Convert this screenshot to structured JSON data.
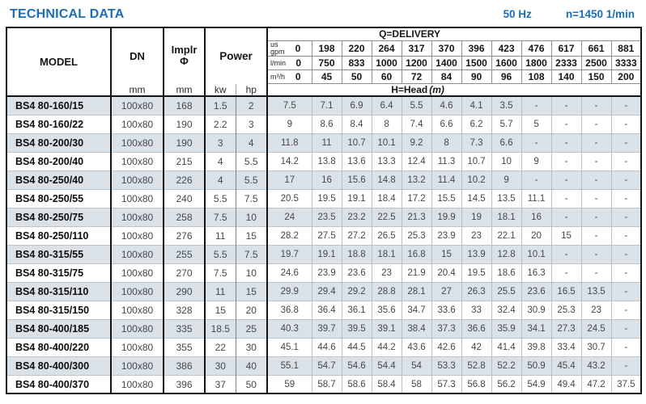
{
  "header": {
    "title": "TECHNICAL DATA",
    "frequency": "50 Hz",
    "speed": "n=1450 1/min"
  },
  "colors": {
    "accent_blue": "#1b6eb8",
    "row_alt": "#dbe2e7",
    "border_dark": "#141414",
    "grid_light": "#b6bdc3"
  },
  "table": {
    "model_header": "MODEL",
    "dn_header": "DN",
    "dn_unit": "mm",
    "impeller_header": "Implr",
    "impeller_symbol": "Φ",
    "impeller_unit": "mm",
    "power_header": "Power",
    "power_units": [
      "kw",
      "hp"
    ],
    "delivery_header": "Q=DELIVERY",
    "head_header": "H=Head",
    "head_unit": "(m)",
    "delivery_rows": [
      {
        "unit_lines": [
          "us",
          "gpm"
        ],
        "values": [
          "0",
          "198",
          "220",
          "264",
          "317",
          "370",
          "396",
          "423",
          "476",
          "617",
          "661",
          "881"
        ]
      },
      {
        "unit_lines": [
          "l/min"
        ],
        "values": [
          "0",
          "750",
          "833",
          "1000",
          "1200",
          "1400",
          "1500",
          "1600",
          "1800",
          "2333",
          "2500",
          "3333"
        ]
      },
      {
        "unit_lines": [
          "m³/h"
        ],
        "values": [
          "0",
          "45",
          "50",
          "60",
          "72",
          "84",
          "90",
          "96",
          "108",
          "140",
          "150",
          "200"
        ]
      }
    ],
    "rows": [
      {
        "model": "BS4 80-160/15",
        "dn": "100x80",
        "impeller": "168",
        "kw": "1.5",
        "hp": "2",
        "head": [
          "7.5",
          "7.1",
          "6.9",
          "6.4",
          "5.5",
          "4.6",
          "4.1",
          "3.5",
          "-",
          "-",
          "-",
          "-"
        ]
      },
      {
        "model": "BS4 80-160/22",
        "dn": "100x80",
        "impeller": "190",
        "kw": "2.2",
        "hp": "3",
        "head": [
          "9",
          "8.6",
          "8.4",
          "8",
          "7.4",
          "6.6",
          "6.2",
          "5.7",
          "5",
          "-",
          "-",
          "-"
        ]
      },
      {
        "model": "BS4 80-200/30",
        "dn": "100x80",
        "impeller": "190",
        "kw": "3",
        "hp": "4",
        "head": [
          "11.8",
          "11",
          "10.7",
          "10.1",
          "9.2",
          "8",
          "7.3",
          "6.6",
          "-",
          "-",
          "-",
          "-"
        ]
      },
      {
        "model": "BS4 80-200/40",
        "dn": "100x80",
        "impeller": "215",
        "kw": "4",
        "hp": "5.5",
        "head": [
          "14.2",
          "13.8",
          "13.6",
          "13.3",
          "12.4",
          "11.3",
          "10.7",
          "10",
          "9",
          "-",
          "-",
          "-"
        ]
      },
      {
        "model": "BS4 80-250/40",
        "dn": "100x80",
        "impeller": "226",
        "kw": "4",
        "hp": "5.5",
        "head": [
          "17",
          "16",
          "15.6",
          "14.8",
          "13.2",
          "11.4",
          "10.2",
          "9",
          "-",
          "-",
          "-",
          "-"
        ]
      },
      {
        "model": "BS4 80-250/55",
        "dn": "100x80",
        "impeller": "240",
        "kw": "5.5",
        "hp": "7.5",
        "head": [
          "20.5",
          "19.5",
          "19.1",
          "18.4",
          "17.2",
          "15.5",
          "14.5",
          "13.5",
          "11.1",
          "-",
          "-",
          "-"
        ]
      },
      {
        "model": "BS4 80-250/75",
        "dn": "100x80",
        "impeller": "258",
        "kw": "7.5",
        "hp": "10",
        "head": [
          "24",
          "23.5",
          "23.2",
          "22.5",
          "21.3",
          "19.9",
          "19",
          "18.1",
          "16",
          "-",
          "-",
          "-"
        ]
      },
      {
        "model": "BS4 80-250/110",
        "dn": "100x80",
        "impeller": "276",
        "kw": "11",
        "hp": "15",
        "head": [
          "28.2",
          "27.5",
          "27.2",
          "26.5",
          "25.3",
          "23.9",
          "23",
          "22.1",
          "20",
          "15",
          "-",
          "-"
        ]
      },
      {
        "model": "BS4 80-315/55",
        "dn": "100x80",
        "impeller": "255",
        "kw": "5.5",
        "hp": "7.5",
        "head": [
          "19.7",
          "19.1",
          "18.8",
          "18.1",
          "16.8",
          "15",
          "13.9",
          "12.8",
          "10.1",
          "-",
          "-",
          "-"
        ]
      },
      {
        "model": "BS4 80-315/75",
        "dn": "100x80",
        "impeller": "270",
        "kw": "7.5",
        "hp": "10",
        "head": [
          "24.6",
          "23.9",
          "23.6",
          "23",
          "21.9",
          "20.4",
          "19.5",
          "18.6",
          "16.3",
          "-",
          "-",
          "-"
        ]
      },
      {
        "model": "BS4 80-315/110",
        "dn": "100x80",
        "impeller": "290",
        "kw": "11",
        "hp": "15",
        "head": [
          "29.9",
          "29.4",
          "29.2",
          "28.8",
          "28.1",
          "27",
          "26.3",
          "25.5",
          "23.6",
          "16.5",
          "13.5",
          "-"
        ]
      },
      {
        "model": "BS4 80-315/150",
        "dn": "100x80",
        "impeller": "328",
        "kw": "15",
        "hp": "20",
        "head": [
          "36.8",
          "36.4",
          "36.1",
          "35.6",
          "34.7",
          "33.6",
          "33",
          "32.4",
          "30.9",
          "25.3",
          "23",
          "-"
        ]
      },
      {
        "model": "BS4 80-400/185",
        "dn": "100x80",
        "impeller": "335",
        "kw": "18.5",
        "hp": "25",
        "head": [
          "40.3",
          "39.7",
          "39.5",
          "39.1",
          "38.4",
          "37.3",
          "36.6",
          "35.9",
          "34.1",
          "27.3",
          "24.5",
          "-"
        ]
      },
      {
        "model": "BS4 80-400/220",
        "dn": "100x80",
        "impeller": "355",
        "kw": "22",
        "hp": "30",
        "head": [
          "45.1",
          "44.6",
          "44.5",
          "44.2",
          "43.6",
          "42.6",
          "42",
          "41.4",
          "39.8",
          "33.4",
          "30.7",
          "-"
        ]
      },
      {
        "model": "BS4 80-400/300",
        "dn": "100x80",
        "impeller": "386",
        "kw": "30",
        "hp": "40",
        "head": [
          "55.1",
          "54.7",
          "54.6",
          "54.4",
          "54",
          "53.3",
          "52.8",
          "52.2",
          "50.9",
          "45.4",
          "43.2",
          "-"
        ]
      },
      {
        "model": "BS4 80-400/370",
        "dn": "100x80",
        "impeller": "396",
        "kw": "37",
        "hp": "50",
        "head": [
          "59",
          "58.7",
          "58.6",
          "58.4",
          "58",
          "57.3",
          "56.8",
          "56.2",
          "54.9",
          "49.4",
          "47.2",
          "37.5"
        ]
      }
    ]
  }
}
